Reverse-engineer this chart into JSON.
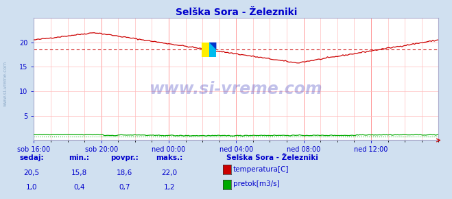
{
  "title": "Selška Sora - Železniki",
  "title_color": "#0000cc",
  "bg_color": "#d0e0f0",
  "plot_bg_color": "#ffffff",
  "grid_color": "#ffbbbb",
  "xlabel_color": "#0000cc",
  "ylabel_color": "#0000cc",
  "x_tick_labels": [
    "sob 16:00",
    "sob 20:00",
    "ned 00:00",
    "ned 04:00",
    "ned 08:00",
    "ned 12:00"
  ],
  "x_tick_positions": [
    0,
    48,
    96,
    144,
    192,
    240
  ],
  "xlim": [
    0,
    288
  ],
  "ylim": [
    0,
    25
  ],
  "ytick_positions": [
    5,
    10,
    15,
    20
  ],
  "ytick_labels": [
    "5",
    "10",
    "15",
    "20"
  ],
  "temp_color": "#cc0000",
  "flow_color": "#00aa00",
  "avg_temp": 18.6,
  "avg_flow": 0.7,
  "watermark_text": "www.si-vreme.com",
  "watermark_color": "#3333bb",
  "watermark_alpha": 0.3,
  "left_label": "www.si-vreme.com",
  "legend_title": "Selška Sora - Železniki",
  "legend_items": [
    {
      "label": "temperatura[C]",
      "color": "#cc0000"
    },
    {
      "label": "pretok[m3/s]",
      "color": "#00aa00"
    }
  ],
  "stats_labels": [
    "sedaj:",
    "min.:",
    "povpr.:",
    "maks.:"
  ],
  "stats_temp": [
    "20,5",
    "15,8",
    "18,6",
    "22,0"
  ],
  "stats_flow": [
    "1,0",
    "0,4",
    "0,7",
    "1,2"
  ],
  "n_points": 289
}
